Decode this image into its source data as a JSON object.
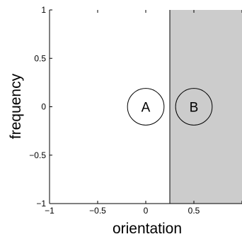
{
  "chart_data": {
    "type": "scatter",
    "title": "",
    "xlabel": "orientation",
    "ylabel": "frequency",
    "xlim": [
      -1,
      1
    ],
    "ylim": [
      -1,
      1
    ],
    "x_ticks": [
      {
        "value": -1,
        "label": "−1"
      },
      {
        "value": -0.5,
        "label": "−0.5"
      },
      {
        "value": 0,
        "label": "0"
      },
      {
        "value": 0.5,
        "label": "0.5"
      },
      {
        "value": 1,
        "label": "1"
      }
    ],
    "y_ticks": [
      {
        "value": -1,
        "label": "−1"
      },
      {
        "value": -0.5,
        "label": "−0.5"
      },
      {
        "value": 0,
        "label": "0"
      },
      {
        "value": 0.5,
        "label": "0.5"
      },
      {
        "value": 1,
        "label": "1"
      }
    ],
    "grid": false,
    "shaded_region": {
      "x_from": 0.25,
      "x_to": 1,
      "color": "#cccccc"
    },
    "points": [
      {
        "label": "A",
        "x": 0,
        "y": 0
      },
      {
        "label": "B",
        "x": 0.5,
        "y": 0
      }
    ],
    "marker_radius_data": 0.19
  }
}
